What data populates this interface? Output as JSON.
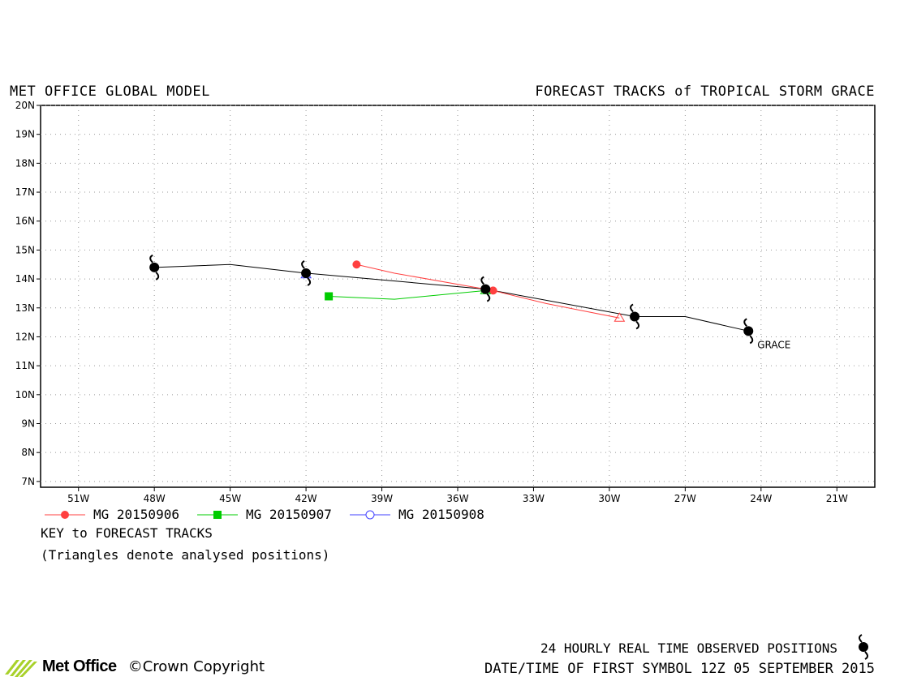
{
  "header": {
    "left": "MET OFFICE GLOBAL MODEL",
    "right": "FORECAST TRACKS of TROPICAL STORM GRACE"
  },
  "chart_data": {
    "type": "line",
    "title": "FORECAST TRACKS of TROPICAL STORM GRACE",
    "xlabel": "",
    "ylabel": "",
    "xlim": [
      -52.5,
      -19.5
    ],
    "ylim": [
      6.8,
      20
    ],
    "x_ticks": [
      -51,
      -48,
      -45,
      -42,
      -39,
      -36,
      -33,
      -30,
      -27,
      -24,
      -21
    ],
    "x_tick_labels": [
      "51W",
      "48W",
      "45W",
      "42W",
      "39W",
      "36W",
      "33W",
      "30W",
      "27W",
      "24W",
      "21W"
    ],
    "y_ticks": [
      7,
      8,
      9,
      10,
      11,
      12,
      13,
      14,
      15,
      16,
      17,
      18,
      19,
      20
    ],
    "y_tick_labels": [
      "7N",
      "8N",
      "9N",
      "10N",
      "11N",
      "12N",
      "13N",
      "14N",
      "15N",
      "16N",
      "17N",
      "18N",
      "19N",
      "20N"
    ],
    "grid": true,
    "observed": {
      "label": "GRACE",
      "color": "#000000",
      "points": [
        {
          "lon": -24.5,
          "lat": 12.2,
          "symbol": true
        },
        {
          "lon": -27.0,
          "lat": 12.7,
          "symbol": false
        },
        {
          "lon": -29.0,
          "lat": 12.7,
          "symbol": true
        },
        {
          "lon": -34.9,
          "lat": 13.65,
          "symbol": true
        },
        {
          "lon": -42.0,
          "lat": 14.2,
          "symbol": true
        },
        {
          "lon": -45.0,
          "lat": 14.5,
          "symbol": false
        },
        {
          "lon": -48.0,
          "lat": 14.4,
          "symbol": true
        }
      ]
    },
    "series": [
      {
        "name": "MG 20150906",
        "color": "#ff4040",
        "marker": "circle",
        "points": [
          {
            "lon": -29.6,
            "lat": 12.65
          },
          {
            "lon": -32.5,
            "lat": 13.15
          },
          {
            "lon": -34.6,
            "lat": 13.6
          },
          {
            "lon": -38.5,
            "lat": 14.2
          },
          {
            "lon": -40.0,
            "lat": 14.5
          }
        ],
        "marked": [
          2,
          4
        ],
        "analysed": [
          0
        ]
      },
      {
        "name": "MG 20150907",
        "color": "#00cc00",
        "marker": "square",
        "points": [
          {
            "lon": -34.9,
            "lat": 13.6
          },
          {
            "lon": -38.5,
            "lat": 13.3
          },
          {
            "lon": -41.1,
            "lat": 13.4
          }
        ],
        "marked": [
          2
        ],
        "analysed": [
          0
        ]
      },
      {
        "name": "MG 20150908",
        "color": "#4040ff",
        "marker": "open-circle",
        "points": [
          {
            "lon": -42.0,
            "lat": 14.15
          }
        ],
        "marked": [],
        "analysed": [
          0
        ]
      }
    ]
  },
  "legend": [
    {
      "label": "MG 20150906",
      "color": "#ff4040",
      "marker": "circle"
    },
    {
      "label": "MG 20150907",
      "color": "#00cc00",
      "marker": "square"
    },
    {
      "label": "MG 20150908",
      "color": "#4040ff",
      "marker": "open-circle"
    }
  ],
  "key": {
    "title": "KEY to FORECAST TRACKS",
    "note": "(Triangles denote analysed positions)"
  },
  "footer": {
    "observed_label": "24 HOURLY REAL TIME OBSERVED POSITIONS",
    "first_symbol": "DATE/TIME OF FIRST SYMBOL 12Z 05 SEPTEMBER 2015",
    "logo_text": "Met Office",
    "copyright": "©Crown Copyright"
  },
  "icons": {
    "storm": "hurricane-symbol-icon",
    "logo": "met-office-logo-icon"
  }
}
